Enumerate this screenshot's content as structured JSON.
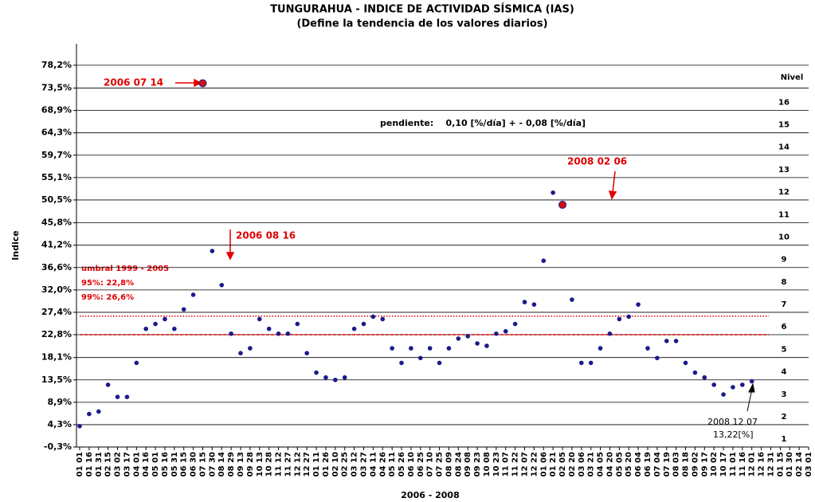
{
  "chart_data": {
    "type": "scatter",
    "title": "TUNGURAHUA - INDICE DE ACTIVIDAD SÍSMICA (IAS)",
    "subtitle": "(Define la tendencia de los valores diarios)",
    "y_label": "Indice",
    "x_label": "2006 - 2008",
    "categories": [
      "01 01",
      "01 16",
      "01 31",
      "02 15",
      "03 02",
      "03 17",
      "04 01",
      "04 16",
      "05 01",
      "05 16",
      "05 31",
      "06 15",
      "06 30",
      "07 15",
      "07 30",
      "08 14",
      "08 29",
      "09 13",
      "09 28",
      "10 13",
      "10 28",
      "11 12",
      "11 27",
      "12 12",
      "12 27",
      "01 11",
      "01 26",
      "02 10",
      "02 25",
      "03 12",
      "03 27",
      "04 11",
      "04 26",
      "05 11",
      "05 26",
      "06 10",
      "06 25",
      "07 10",
      "07 25",
      "08 09",
      "08 24",
      "09 08",
      "09 23",
      "10 08",
      "10 23",
      "11 07",
      "11 22",
      "12 07",
      "12 22",
      "01 06",
      "01 21",
      "02 05",
      "02 20",
      "03 06",
      "03 21",
      "04 05",
      "04 20",
      "05 05",
      "05 20",
      "06 04",
      "06 19",
      "07 04",
      "07 19",
      "08 03",
      "08 18",
      "09 02",
      "09 17",
      "10 02",
      "10 17",
      "11 01",
      "11 16",
      "12 01",
      "12 16",
      "12 31",
      "01 15",
      "01 30",
      "02 14",
      "03 01"
    ],
    "series": [
      {
        "color": "#1a1a8c",
        "values": [
          4,
          6.5,
          7,
          12.5,
          10,
          10,
          17,
          24,
          25,
          26,
          24,
          28,
          31,
          74.5,
          40,
          33,
          23,
          19,
          20,
          26,
          24,
          23,
          23,
          25,
          19,
          15,
          14,
          13.5,
          14,
          24,
          25,
          26.5,
          26,
          20,
          17,
          20,
          18,
          20,
          17,
          20,
          22,
          22.5,
          21,
          20.5,
          23,
          23.5,
          25,
          29.5,
          29,
          38,
          52,
          49.5,
          30,
          17,
          17,
          20,
          23,
          26,
          26.5,
          29,
          20,
          18,
          21.5,
          21.5,
          17,
          15,
          14,
          12.5,
          10.5,
          12,
          12.5,
          13.22,
          null,
          null,
          null,
          null,
          null,
          null
        ]
      }
    ],
    "ylim": [
      -0.3,
      82.6
    ],
    "yticks": [
      {
        "value": -0.3,
        "label": "-0,3%"
      },
      {
        "value": 4.3,
        "label": "4,3%"
      },
      {
        "value": 8.9,
        "label": "8,9%"
      },
      {
        "value": 13.5,
        "label": "13,5%"
      },
      {
        "value": 18.1,
        "label": "18,1%"
      },
      {
        "value": 22.8,
        "label": "22,8%"
      },
      {
        "value": 27.4,
        "label": "27,4%"
      },
      {
        "value": 32.0,
        "label": "32,0%"
      },
      {
        "value": 36.6,
        "label": "36,6%"
      },
      {
        "value": 41.2,
        "label": "41,2%"
      },
      {
        "value": 45.8,
        "label": "45,8%"
      },
      {
        "value": 50.5,
        "label": "50,5%"
      },
      {
        "value": 55.1,
        "label": "55,1%"
      },
      {
        "value": 59.7,
        "label": "59,7%"
      },
      {
        "value": 64.3,
        "label": "64,3%"
      },
      {
        "value": 68.9,
        "label": "68,9%"
      },
      {
        "value": 73.5,
        "label": "73,5%"
      },
      {
        "value": 78.2,
        "label": "78,2%"
      }
    ],
    "grid": true,
    "thresholds": [
      {
        "value": 22.8,
        "color": "#e00000"
      },
      {
        "value": 26.6,
        "color": "#e00000"
      }
    ],
    "level_title": "Nivel",
    "levels": [
      "1",
      "2",
      "3",
      "4",
      "5",
      "6",
      "7",
      "8",
      "9",
      "10",
      "11",
      "12",
      "13",
      "14",
      "15",
      "16"
    ],
    "annotations": {
      "peak_date": "2006 07 14",
      "date2": "2006 08 16",
      "umbral": "umbral 1999 - 2005",
      "p95": "95%:   22,8%",
      "p99": "99%:   26,6%",
      "pendiente": "pendiente:    0,10 [%/día] + - 0,08 [%/día]",
      "date3": "2008 02 06",
      "last_date": "2008 12 07",
      "last_value": "13,22[%]"
    }
  }
}
